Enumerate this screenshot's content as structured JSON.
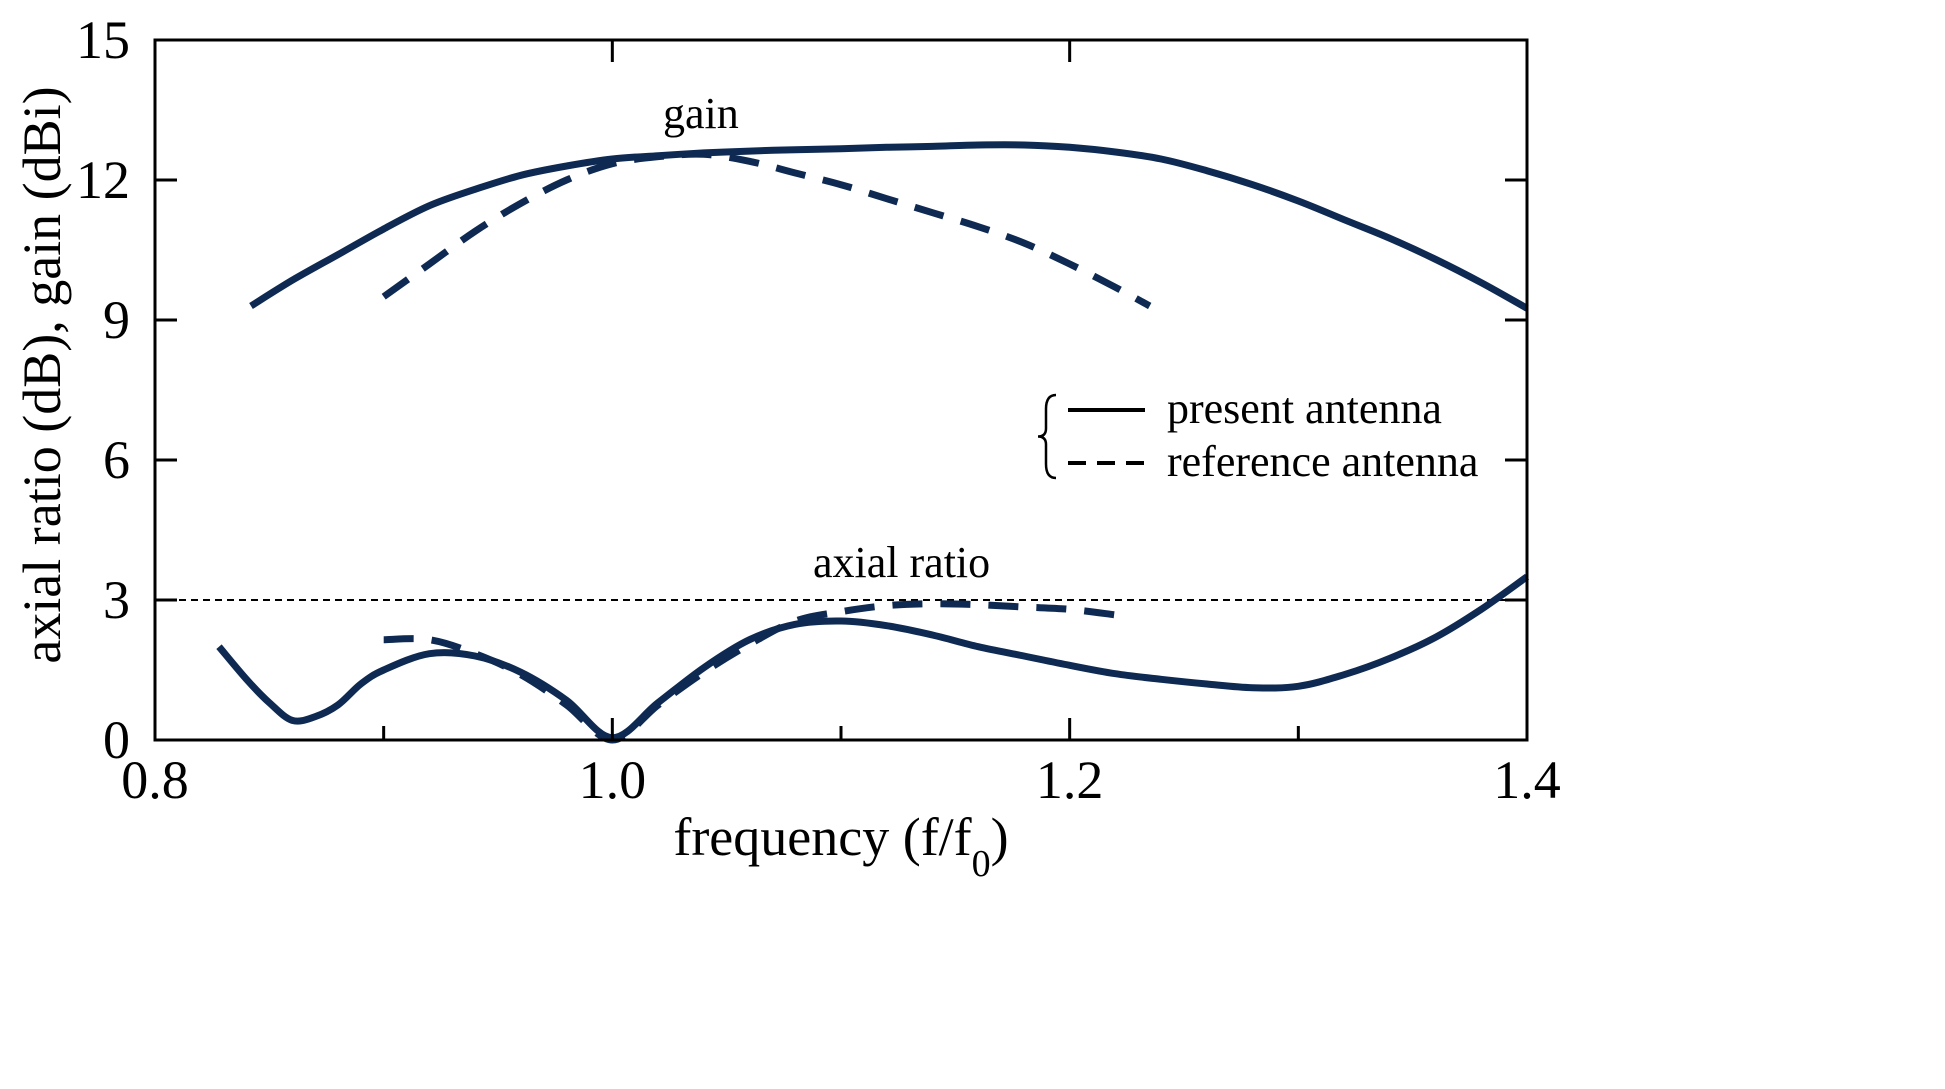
{
  "chart_data": {
    "type": "line",
    "xlabel": "frequency (f/f",
    "xlabel_sub": "0",
    "xlabel_close": ")",
    "ylabel": "axial ratio (dB), gain (dBi)",
    "xlim": [
      0.8,
      1.4
    ],
    "ylim": [
      0,
      15
    ],
    "xticks": [
      0.8,
      1.0,
      1.2,
      1.4
    ],
    "xtick_labels": [
      "0.8",
      "1.0",
      "1.2",
      "1.4"
    ],
    "yticks": [
      0,
      3,
      6,
      9,
      12,
      15
    ],
    "ytick_labels": [
      "0",
      "3",
      "6",
      "9",
      "12",
      "15"
    ],
    "reference_line": {
      "y": 3,
      "style": "dotted"
    },
    "annotations": {
      "gain": "gain",
      "axial_ratio": "axial ratio"
    },
    "legend": {
      "placement": "middle-right",
      "entries": [
        {
          "label": "present antenna",
          "style": "solid"
        },
        {
          "label": "reference antenna",
          "style": "dashed"
        }
      ]
    },
    "color": "#0f2a52",
    "series": [
      {
        "name": "gain — present antenna",
        "style": "solid",
        "x": [
          0.842,
          0.86,
          0.88,
          0.9,
          0.92,
          0.94,
          0.96,
          0.98,
          1.0,
          1.02,
          1.04,
          1.06,
          1.08,
          1.1,
          1.12,
          1.14,
          1.16,
          1.18,
          1.2,
          1.22,
          1.24,
          1.26,
          1.28,
          1.3,
          1.32,
          1.34,
          1.36,
          1.38,
          1.4
        ],
        "y": [
          9.3,
          9.85,
          10.4,
          10.95,
          11.45,
          11.8,
          12.1,
          12.3,
          12.45,
          12.52,
          12.58,
          12.62,
          12.65,
          12.67,
          12.7,
          12.72,
          12.75,
          12.75,
          12.7,
          12.6,
          12.45,
          12.2,
          11.9,
          11.55,
          11.15,
          10.75,
          10.3,
          9.8,
          9.25
        ]
      },
      {
        "name": "gain — reference antenna",
        "style": "dashed",
        "x": [
          0.9,
          0.92,
          0.94,
          0.96,
          0.98,
          1.0,
          1.02,
          1.04,
          1.06,
          1.08,
          1.1,
          1.12,
          1.14,
          1.16,
          1.18,
          1.2,
          1.22,
          1.235
        ],
        "y": [
          9.5,
          10.2,
          10.9,
          11.5,
          12.0,
          12.35,
          12.5,
          12.55,
          12.4,
          12.15,
          11.9,
          11.6,
          11.3,
          11.0,
          10.65,
          10.2,
          9.7,
          9.3
        ]
      },
      {
        "name": "axial ratio — present antenna",
        "style": "solid",
        "x": [
          0.828,
          0.84,
          0.85,
          0.86,
          0.87,
          0.88,
          0.89,
          0.9,
          0.92,
          0.94,
          0.96,
          0.98,
          1.0,
          1.02,
          1.04,
          1.06,
          1.08,
          1.1,
          1.12,
          1.14,
          1.16,
          1.18,
          1.2,
          1.22,
          1.24,
          1.26,
          1.28,
          1.3,
          1.32,
          1.34,
          1.36,
          1.38,
          1.4
        ],
        "y": [
          2.0,
          1.3,
          0.8,
          0.42,
          0.5,
          0.75,
          1.2,
          1.5,
          1.85,
          1.8,
          1.45,
          0.85,
          0.05,
          0.8,
          1.55,
          2.15,
          2.48,
          2.55,
          2.45,
          2.25,
          2.0,
          1.8,
          1.6,
          1.42,
          1.3,
          1.2,
          1.12,
          1.15,
          1.4,
          1.75,
          2.2,
          2.8,
          3.5
        ]
      },
      {
        "name": "axial ratio — reference antenna",
        "style": "dashed",
        "x": [
          0.9,
          0.92,
          0.94,
          0.96,
          0.98,
          1.0,
          1.02,
          1.04,
          1.06,
          1.08,
          1.1,
          1.12,
          1.14,
          1.16,
          1.18,
          1.2,
          1.22
        ],
        "y": [
          2.15,
          2.15,
          1.85,
          1.4,
          0.75,
          0.0,
          0.75,
          1.45,
          2.05,
          2.55,
          2.75,
          2.88,
          2.92,
          2.9,
          2.85,
          2.8,
          2.68
        ]
      }
    ]
  }
}
